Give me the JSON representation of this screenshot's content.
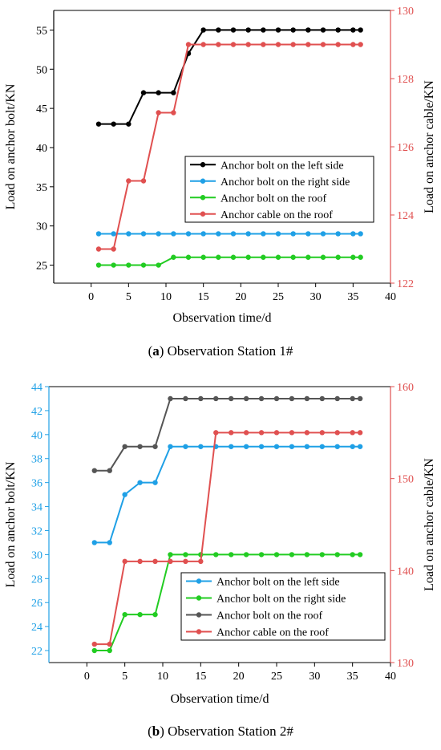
{
  "chart_data": [
    {
      "type": "line",
      "panel_letter": "a",
      "caption": "Observation Station 1#",
      "xlabel": "Observation time/d",
      "ylabel_left": "Load on anchor bolt/KN",
      "ylabel_right": "Load on anchor cable/KN",
      "xlim": [
        -5,
        40
      ],
      "xticks": [
        0,
        5,
        10,
        15,
        20,
        25,
        30,
        35,
        40
      ],
      "ylim_left": [
        22.7,
        57.5
      ],
      "yticks_left": [
        25,
        30,
        35,
        40,
        45,
        50,
        55
      ],
      "ylim_right": [
        122,
        130
      ],
      "yticks_right": [
        122,
        124,
        126,
        128,
        130
      ],
      "left_axis_color": "#000000",
      "right_axis_color": "#e05050",
      "x": [
        1,
        3,
        5,
        7,
        9,
        11,
        13,
        15,
        17,
        19,
        21,
        23,
        25,
        27,
        29,
        31,
        33,
        35,
        36
      ],
      "series": [
        {
          "name": "Anchor bolt on the left side",
          "axis": "left",
          "color": "#000000",
          "values": [
            43,
            43,
            43,
            47,
            47,
            47,
            52,
            55,
            55,
            55,
            55,
            55,
            55,
            55,
            55,
            55,
            55,
            55,
            55
          ]
        },
        {
          "name": "Anchor bolt on the right side",
          "axis": "left",
          "color": "#1fa0e6",
          "values": [
            29,
            29,
            29,
            29,
            29,
            29,
            29,
            29,
            29,
            29,
            29,
            29,
            29,
            29,
            29,
            29,
            29,
            29,
            29
          ]
        },
        {
          "name": "Anchor bolt on the roof",
          "axis": "left",
          "color": "#22cc22",
          "values": [
            25,
            25,
            25,
            25,
            25,
            26,
            26,
            26,
            26,
            26,
            26,
            26,
            26,
            26,
            26,
            26,
            26,
            26,
            26
          ]
        },
        {
          "name": "Anchor cable on the roof",
          "axis": "right",
          "color": "#e05050",
          "values": [
            123,
            123,
            125,
            125,
            127,
            127,
            129,
            129,
            129,
            129,
            129,
            129,
            129,
            129,
            129,
            129,
            129,
            129,
            129
          ]
        }
      ]
    },
    {
      "type": "line",
      "panel_letter": "b",
      "caption": "Observation Station 2#",
      "xlabel": "Observation time/d",
      "ylabel_left": "Load on anchor bolt/KN",
      "ylabel_right": "Load on anchor cable/KN",
      "xlim": [
        -5,
        40
      ],
      "xticks": [
        0,
        5,
        10,
        15,
        20,
        25,
        30,
        35,
        40
      ],
      "ylim_left": [
        21,
        44
      ],
      "yticks_left": [
        22,
        24,
        26,
        28,
        30,
        32,
        34,
        36,
        38,
        40,
        42,
        44
      ],
      "ylim_right": [
        130,
        160
      ],
      "yticks_right": [
        130,
        140,
        150,
        160
      ],
      "left_axis_color": "#1fa0e6",
      "right_axis_color": "#e05050",
      "x": [
        1,
        3,
        5,
        7,
        9,
        11,
        13,
        15,
        17,
        19,
        21,
        23,
        25,
        27,
        29,
        31,
        33,
        35,
        36
      ],
      "series": [
        {
          "name": "Anchor bolt on the left side",
          "axis": "left",
          "color": "#1fa0e6",
          "values": [
            31,
            31,
            35,
            36,
            36,
            39,
            39,
            39,
            39,
            39,
            39,
            39,
            39,
            39,
            39,
            39,
            39,
            39,
            39
          ]
        },
        {
          "name": "Anchor bolt on the right side",
          "axis": "left",
          "color": "#22cc22",
          "values": [
            22,
            22,
            25,
            25,
            25,
            30,
            30,
            30,
            30,
            30,
            30,
            30,
            30,
            30,
            30,
            30,
            30,
            30,
            30
          ]
        },
        {
          "name": "Anchor bolt on the roof",
          "axis": "left",
          "color": "#555555",
          "values": [
            37,
            37,
            39,
            39,
            39,
            43,
            43,
            43,
            43,
            43,
            43,
            43,
            43,
            43,
            43,
            43,
            43,
            43,
            43
          ]
        },
        {
          "name": "Anchor cable on the roof",
          "axis": "right",
          "color": "#e05050",
          "values": [
            132,
            132,
            141,
            141,
            141,
            141,
            141,
            141,
            155,
            155,
            155,
            155,
            155,
            155,
            155,
            155,
            155,
            155,
            155
          ]
        }
      ]
    }
  ]
}
